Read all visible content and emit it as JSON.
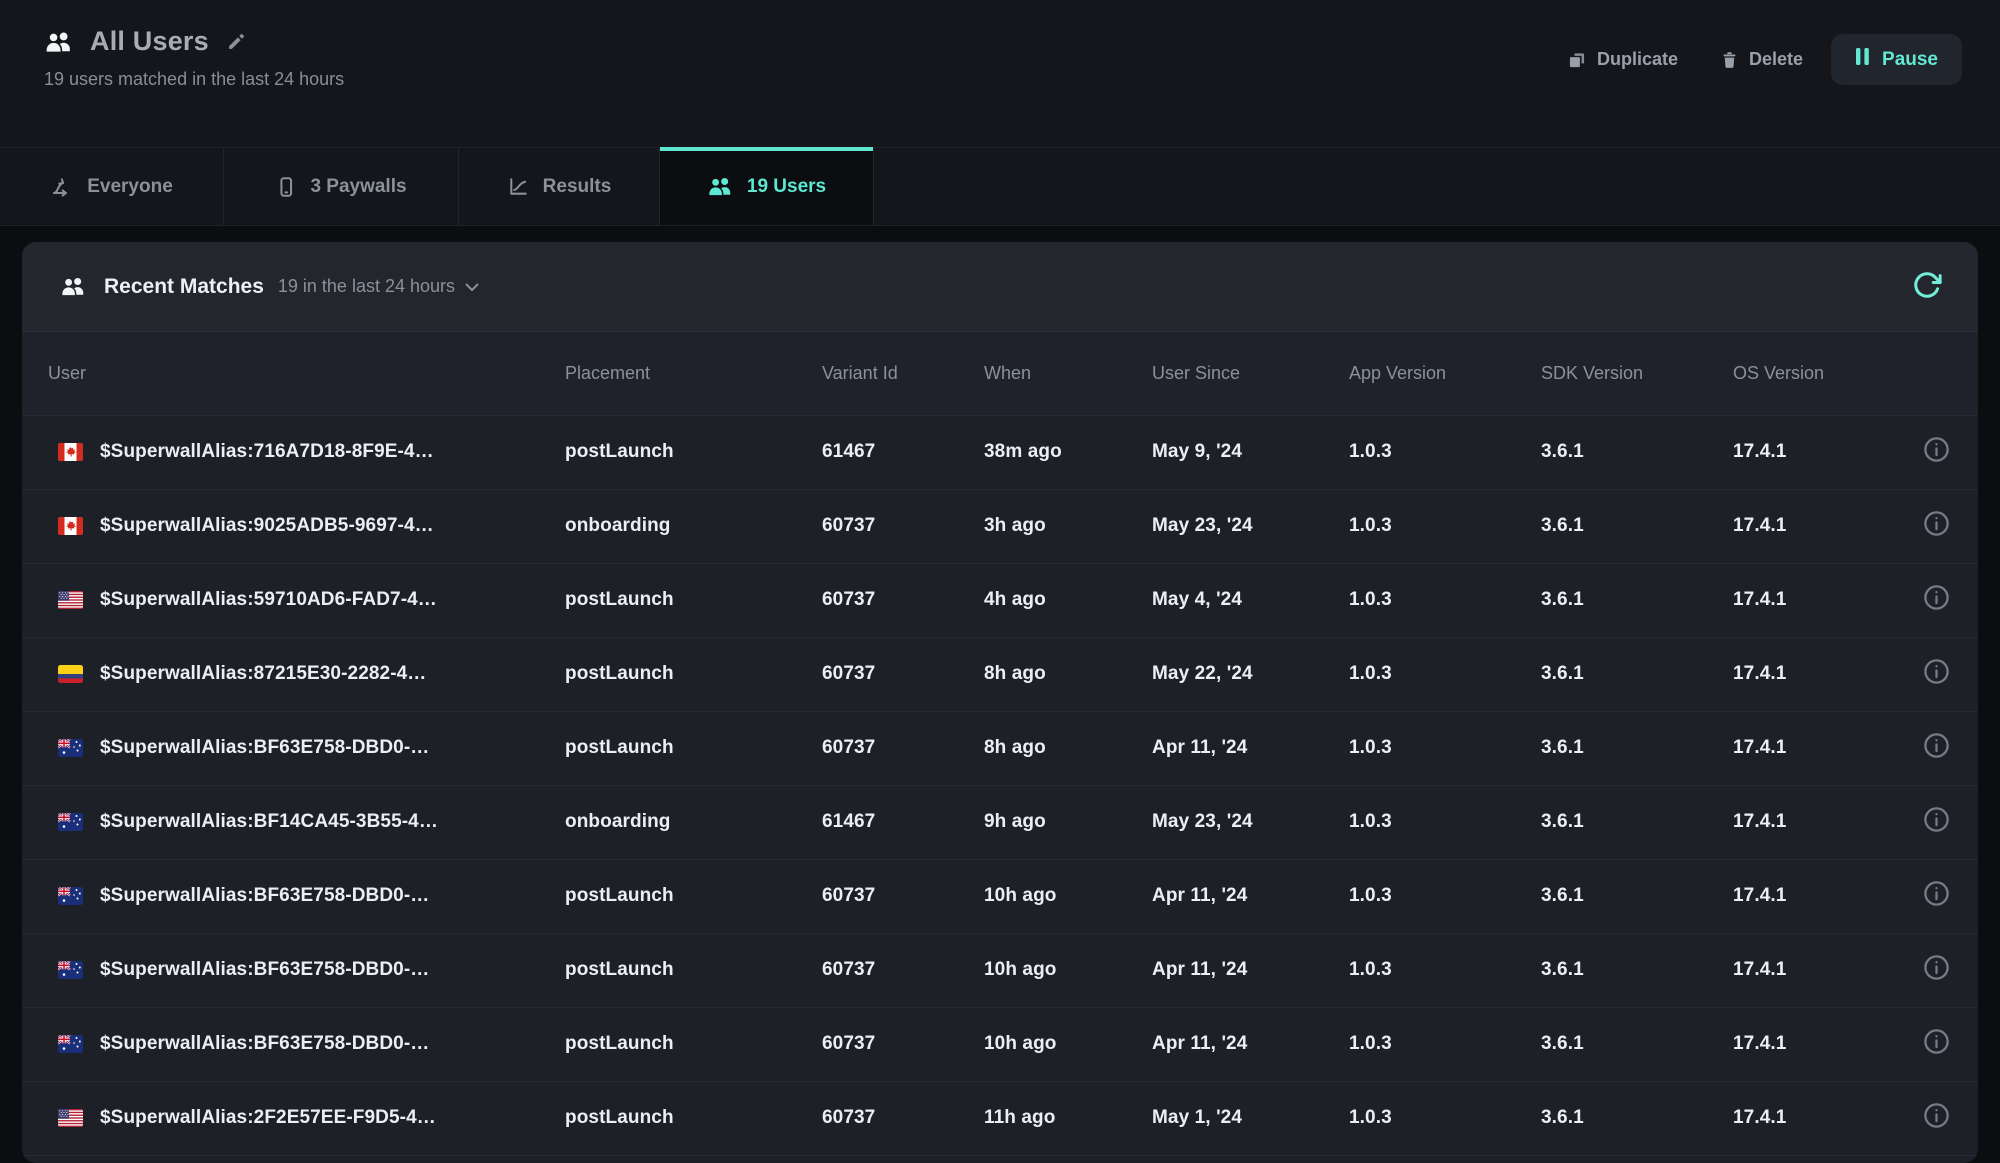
{
  "header": {
    "title": "All Users",
    "subtitle": "19 users matched in the last 24 hours",
    "actions": {
      "duplicate": "Duplicate",
      "delete": "Delete",
      "pause": "Pause"
    }
  },
  "tabs": [
    {
      "label": "Everyone",
      "icon": "route-icon",
      "active": false
    },
    {
      "label": "3 Paywalls",
      "icon": "phone-icon",
      "active": false
    },
    {
      "label": "Results",
      "icon": "chart-icon",
      "active": false
    },
    {
      "label": "19 Users",
      "icon": "users-icon",
      "active": true
    }
  ],
  "panel": {
    "title": "Recent Matches",
    "subtitle": "19 in the last 24 hours"
  },
  "table": {
    "columns": [
      "User",
      "Placement",
      "Variant Id",
      "When",
      "User Since",
      "App Version",
      "SDK Version",
      "OS Version"
    ],
    "rows": [
      {
        "country": "ca",
        "user": "$SuperwallAlias:716A7D18-8F9E-4…",
        "placement": "postLaunch",
        "variant_id": "61467",
        "when": "38m ago",
        "user_since": "May 9, '24",
        "app_version": "1.0.3",
        "sdk_version": "3.6.1",
        "os_version": "17.4.1"
      },
      {
        "country": "ca",
        "user": "$SuperwallAlias:9025ADB5-9697-4…",
        "placement": "onboarding",
        "variant_id": "60737",
        "when": "3h ago",
        "user_since": "May 23, '24",
        "app_version": "1.0.3",
        "sdk_version": "3.6.1",
        "os_version": "17.4.1"
      },
      {
        "country": "us",
        "user": "$SuperwallAlias:59710AD6-FAD7-4…",
        "placement": "postLaunch",
        "variant_id": "60737",
        "when": "4h ago",
        "user_since": "May 4, '24",
        "app_version": "1.0.3",
        "sdk_version": "3.6.1",
        "os_version": "17.4.1"
      },
      {
        "country": "co",
        "user": "$SuperwallAlias:87215E30-2282-4…",
        "placement": "postLaunch",
        "variant_id": "60737",
        "when": "8h ago",
        "user_since": "May 22, '24",
        "app_version": "1.0.3",
        "sdk_version": "3.6.1",
        "os_version": "17.4.1"
      },
      {
        "country": "au",
        "user": "$SuperwallAlias:BF63E758-DBD0-…",
        "placement": "postLaunch",
        "variant_id": "60737",
        "when": "8h ago",
        "user_since": "Apr 11, '24",
        "app_version": "1.0.3",
        "sdk_version": "3.6.1",
        "os_version": "17.4.1"
      },
      {
        "country": "au",
        "user": "$SuperwallAlias:BF14CA45-3B55-4…",
        "placement": "onboarding",
        "variant_id": "61467",
        "when": "9h ago",
        "user_since": "May 23, '24",
        "app_version": "1.0.3",
        "sdk_version": "3.6.1",
        "os_version": "17.4.1"
      },
      {
        "country": "au",
        "user": "$SuperwallAlias:BF63E758-DBD0-…",
        "placement": "postLaunch",
        "variant_id": "60737",
        "when": "10h ago",
        "user_since": "Apr 11, '24",
        "app_version": "1.0.3",
        "sdk_version": "3.6.1",
        "os_version": "17.4.1"
      },
      {
        "country": "au",
        "user": "$SuperwallAlias:BF63E758-DBD0-…",
        "placement": "postLaunch",
        "variant_id": "60737",
        "when": "10h ago",
        "user_since": "Apr 11, '24",
        "app_version": "1.0.3",
        "sdk_version": "3.6.1",
        "os_version": "17.4.1"
      },
      {
        "country": "au",
        "user": "$SuperwallAlias:BF63E758-DBD0-…",
        "placement": "postLaunch",
        "variant_id": "60737",
        "when": "10h ago",
        "user_since": "Apr 11, '24",
        "app_version": "1.0.3",
        "sdk_version": "3.6.1",
        "os_version": "17.4.1"
      },
      {
        "country": "us",
        "user": "$SuperwallAlias:2F2E57EE-F9D5-4…",
        "placement": "postLaunch",
        "variant_id": "60737",
        "when": "11h ago",
        "user_since": "May 1, '24",
        "app_version": "1.0.3",
        "sdk_version": "3.6.1",
        "os_version": "17.4.1"
      }
    ]
  },
  "colors": {
    "accent": "#5fe8d1",
    "card_bg": "#1d2027",
    "page_bg": "#0b0d10",
    "top_bg": "#14161b"
  }
}
